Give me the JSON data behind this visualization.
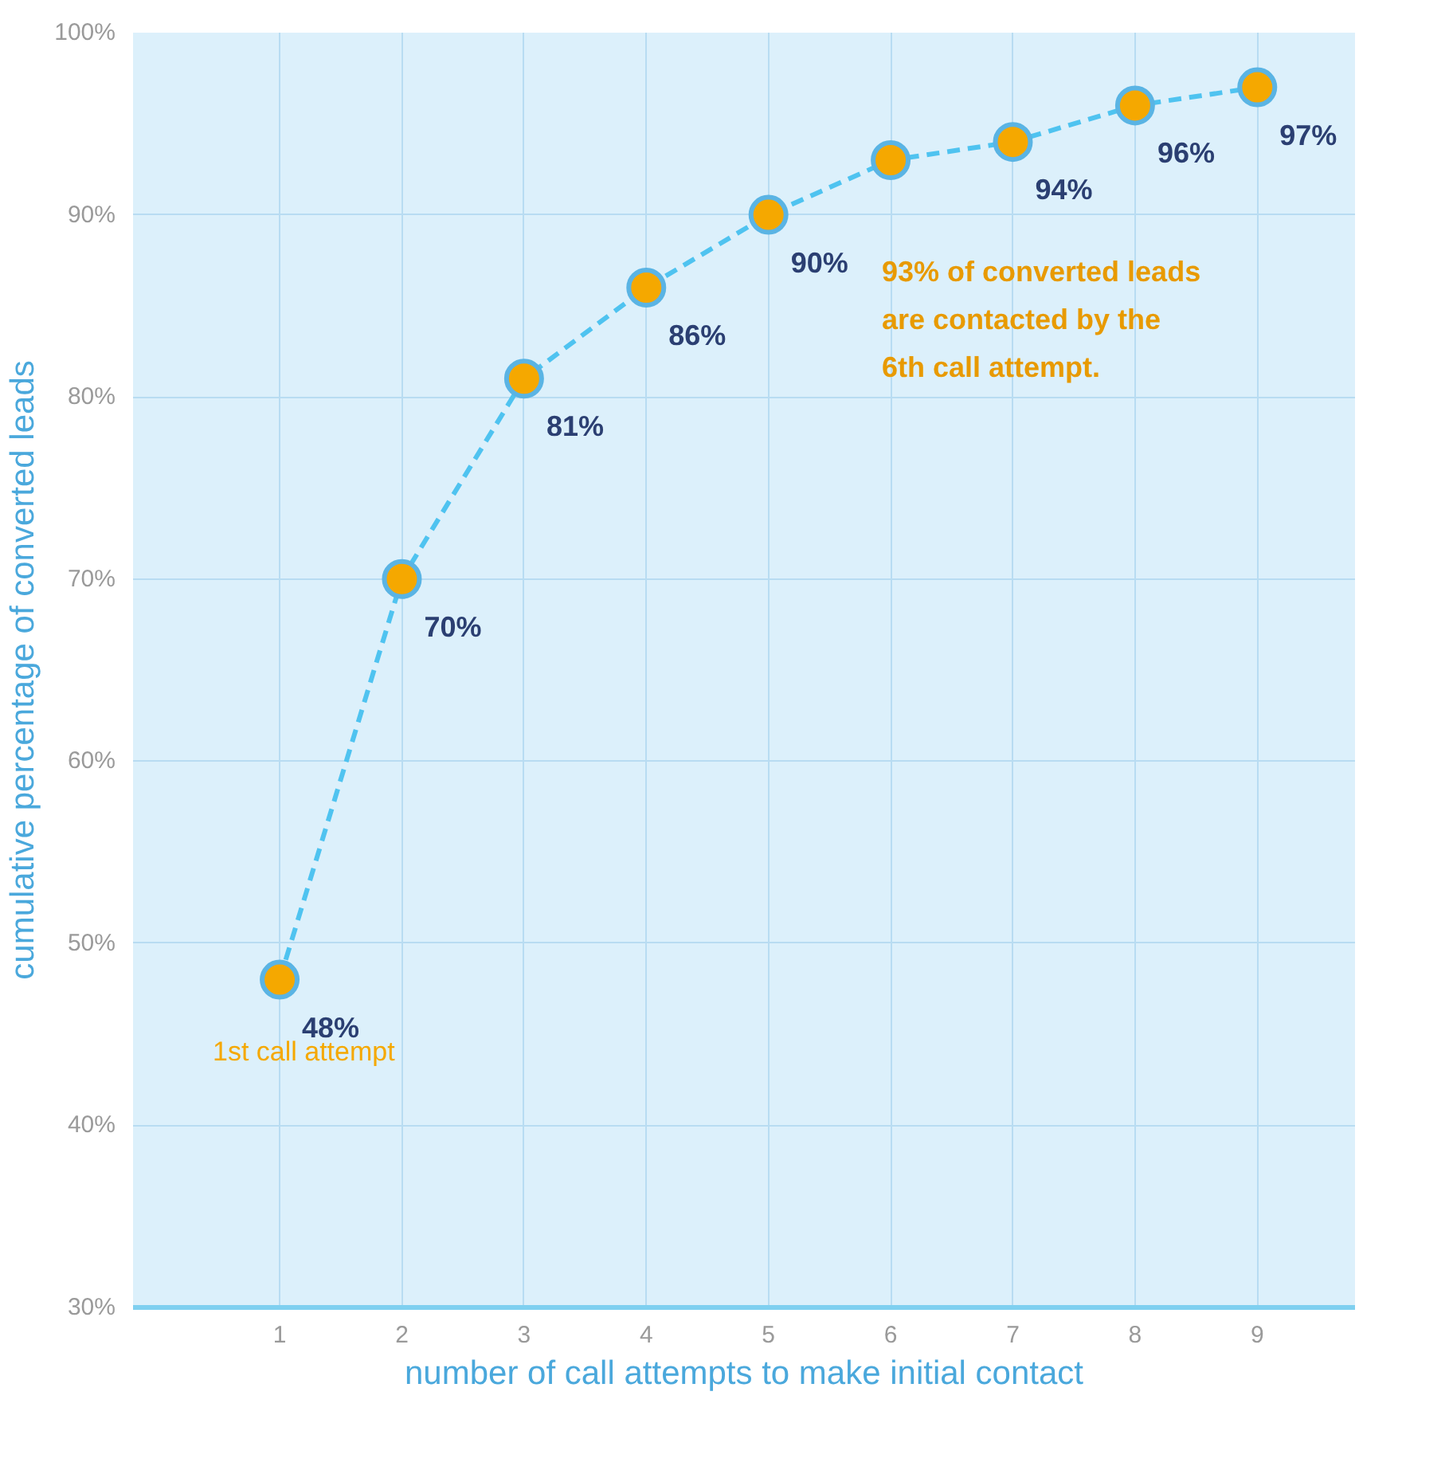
{
  "chart_data": {
    "type": "line",
    "xlabel": "number of call attempts to make initial contact",
    "ylabel": "cumulative percentage of converted leads",
    "x": [
      1,
      2,
      3,
      4,
      5,
      6,
      7,
      8,
      9
    ],
    "series": [
      {
        "color": "#4fc3f0",
        "values": [
          48,
          70,
          81,
          86,
          90,
          93,
          94,
          96,
          97
        ],
        "value_labels": [
          "48%",
          "70%",
          "81%",
          "86%",
          "90%",
          null,
          "94%",
          "96%",
          "97%"
        ]
      }
    ],
    "xlim": [
      -0.2,
      9.8
    ],
    "xticks": [
      1,
      2,
      3,
      4,
      5,
      6,
      7,
      8,
      9
    ],
    "ylim": [
      30,
      100
    ],
    "yticks": [
      {
        "value": 30,
        "label": "30%"
      },
      {
        "value": 40,
        "label": "40%"
      },
      {
        "value": 50,
        "label": "50%"
      },
      {
        "value": 60,
        "label": "60%"
      },
      {
        "value": 70,
        "label": "70%"
      },
      {
        "value": 80,
        "label": "80%"
      },
      {
        "value": 90,
        "label": "90%"
      },
      {
        "value": 100,
        "label": "100%"
      }
    ],
    "annotations": [
      "1st call attempt",
      "93% of converted leads are contacted by the 6th call attempt."
    ],
    "grid": true,
    "marker": "circle",
    "line_style": "dashed"
  }
}
